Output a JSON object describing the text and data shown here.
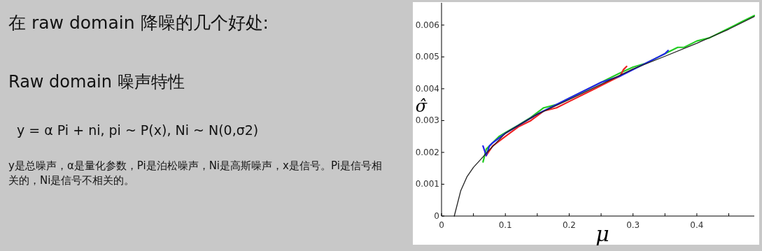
{
  "chart_data": {
    "type": "line",
    "title": "在 raw domain 降噪的几个好处:",
    "subtitle": "Raw domain 噪声特性",
    "xlabel": "μ",
    "ylabel": "σ̂",
    "annotations": [
      "y = α Pi + ni, pi ~ P(x), Ni ~ N(0,σ2)",
      "y是总噪声，α是量化参数，Pi是泊松噪声，Ni是高斯噪声，x是信号。Pi是信号相关的，Ni是信号不相关的。"
    ],
    "xlim": [
      0,
      0.49
    ],
    "ylim": [
      0,
      0.0067
    ],
    "xticks": [
      0,
      {
        "value": 0.05,
        "label": null
      },
      0.1,
      {
        "value": 0.15,
        "label": null
      },
      0.2,
      {
        "value": 0.25,
        "label": null
      },
      0.3,
      {
        "value": 0.35,
        "label": null
      },
      0.4,
      {
        "value": 0.45,
        "label": null
      }
    ],
    "yticks": [
      0,
      0.001,
      0.002,
      0.003,
      0.004,
      0.005,
      0.006
    ],
    "grid": false,
    "marker": "none",
    "line_style": "solid",
    "series": [
      {
        "color": "#22cc22",
        "x": [
          0.065,
          0.07,
          0.08,
          0.09,
          0.1,
          0.12,
          0.14,
          0.16,
          0.18,
          0.2,
          0.22,
          0.24,
          0.26,
          0.28,
          0.3,
          0.32,
          0.34,
          0.36,
          0.37,
          0.38,
          0.4,
          0.42,
          0.44,
          0.46,
          0.47,
          0.48,
          0.49
        ],
        "values": [
          0.0017,
          0.0021,
          0.0023,
          0.0025,
          0.00262,
          0.00285,
          0.0031,
          0.0034,
          0.0035,
          0.0037,
          0.0039,
          0.0041,
          0.0043,
          0.0045,
          0.00468,
          0.0048,
          0.005,
          0.0052,
          0.0053,
          0.0053,
          0.0055,
          0.0056,
          0.0058,
          0.006,
          0.0061,
          0.0062,
          0.0063
        ]
      },
      {
        "color": "#ee2222",
        "x": [
          0.07,
          0.08,
          0.1,
          0.12,
          0.14,
          0.16,
          0.18,
          0.2,
          0.22,
          0.24,
          0.26,
          0.28,
          0.285,
          0.29
        ],
        "values": [
          0.0019,
          0.0022,
          0.0025,
          0.0028,
          0.003,
          0.0033,
          0.0034,
          0.0036,
          0.0038,
          0.004,
          0.0042,
          0.0044,
          0.0046,
          0.0047
        ]
      },
      {
        "color": "#2222ee",
        "x": [
          0.065,
          0.07,
          0.075,
          0.08,
          0.1,
          0.15,
          0.2,
          0.25,
          0.28,
          0.3,
          0.32,
          0.34,
          0.35,
          0.355
        ],
        "values": [
          0.0022,
          0.0019,
          0.0022,
          0.0023,
          0.0026,
          0.0032,
          0.0037,
          0.0042,
          0.0044,
          0.0046,
          0.0048,
          0.005,
          0.0051,
          0.0052
        ]
      },
      {
        "color": "#222222",
        "x": [
          0.02,
          0.03,
          0.04,
          0.05,
          0.07,
          0.1,
          0.15,
          0.2,
          0.25,
          0.3,
          0.35,
          0.4,
          0.45,
          0.49
        ],
        "values": [
          0,
          0.00079,
          0.00124,
          0.00153,
          0.00197,
          0.0026,
          0.0032,
          0.00366,
          0.00414,
          0.00462,
          0.00502,
          0.00543,
          0.00587,
          0.00627
        ]
      }
    ]
  }
}
